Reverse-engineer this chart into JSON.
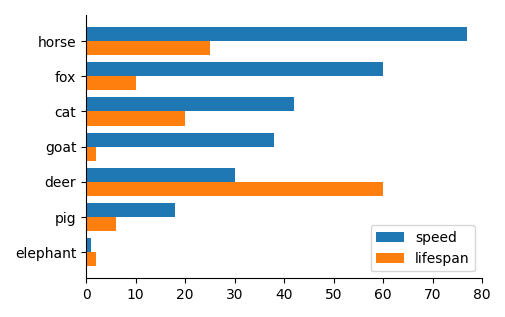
{
  "animals": [
    "horse",
    "fox",
    "cat",
    "goat",
    "deer",
    "pig",
    "elephant"
  ],
  "speed": [
    77,
    60,
    42,
    38,
    30,
    18,
    1
  ],
  "lifespan": [
    25,
    10,
    20,
    2,
    60,
    6,
    2
  ],
  "speed_color": "#1f77b4",
  "lifespan_color": "#ff7f0e",
  "xlim": [
    0,
    80
  ],
  "xticks": [
    0,
    10,
    20,
    30,
    40,
    50,
    60,
    70,
    80
  ],
  "legend_labels": [
    "speed",
    "lifespan"
  ],
  "bar_height": 0.4,
  "figsize": [
    5.06,
    3.17
  ],
  "dpi": 100
}
